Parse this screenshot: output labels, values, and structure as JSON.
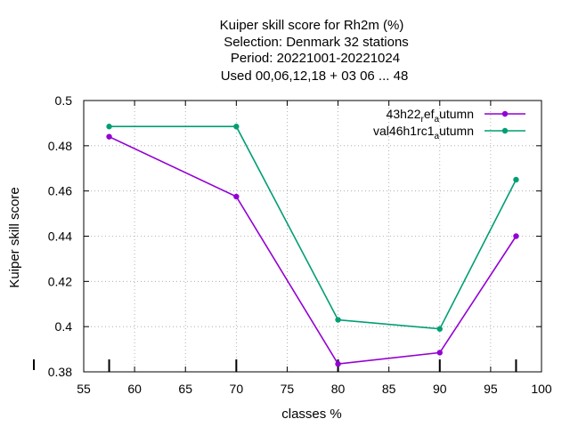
{
  "chart_data": {
    "type": "line",
    "title_lines": [
      "Kuiper skill score  for Rh2m (%)",
      "Selection: Denmark     32 stations",
      "Period: 20221001-20221024",
      "Used  00,06,12,18  + 03 06 ... 48"
    ],
    "xlabel": "classes %",
    "ylabel": "Kuiper skill score",
    "xlim": [
      55,
      100
    ],
    "ylim": [
      0.38,
      0.5
    ],
    "xticks": [
      55,
      60,
      65,
      70,
      75,
      80,
      85,
      90,
      95,
      100
    ],
    "yticks": [
      0.38,
      0.4,
      0.42,
      0.44,
      0.46,
      0.48,
      0.5
    ],
    "grid": true,
    "legend_position": "top-right",
    "series": [
      {
        "name": "43h22_ref_autumn",
        "color": "#9400d3",
        "x": [
          57.5,
          70,
          80,
          90,
          97.5
        ],
        "y": [
          0.484,
          0.4575,
          0.3835,
          0.3885,
          0.44
        ]
      },
      {
        "name": "val46h1rc1_autumn",
        "color": "#009e73",
        "x": [
          57.5,
          70,
          80,
          90,
          97.5
        ],
        "y": [
          0.4885,
          0.4885,
          0.403,
          0.399,
          0.465
        ]
      }
    ]
  }
}
